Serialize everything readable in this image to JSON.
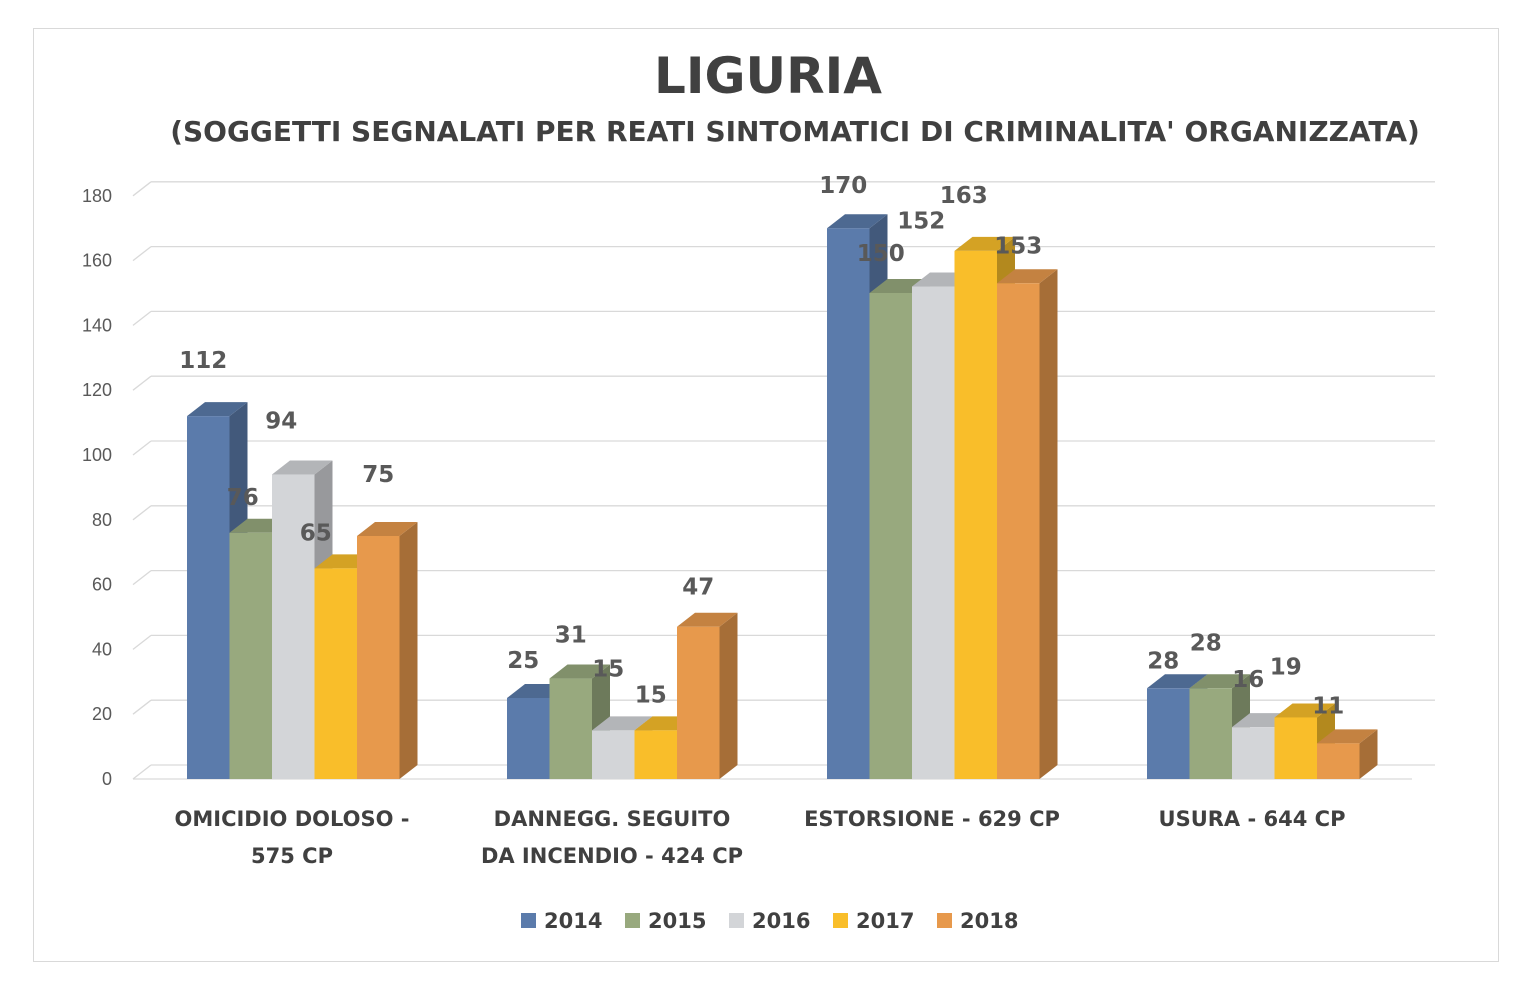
{
  "chart_data": {
    "type": "bar",
    "title": "LIGURIA",
    "subtitle": "(SOGGETTI SEGNALATI PER REATI SINTOMATICI DI CRIMINALITA' ORGANIZZATA)",
    "categories": [
      [
        "OMICIDIO DOLOSO -",
        "575 CP"
      ],
      [
        "DANNEGG. SEGUITO",
        "DA INCENDIO - 424 CP"
      ],
      [
        "ESTORSIONE - 629 CP"
      ],
      [
        "USURA - 644 CP"
      ]
    ],
    "series": [
      {
        "name": "2014",
        "color": "#5b7bab",
        "values": [
          112,
          25,
          170,
          28
        ]
      },
      {
        "name": "2015",
        "color": "#98a97e",
        "values": [
          76,
          31,
          150,
          28
        ]
      },
      {
        "name": "2016",
        "color": "#d3d5d8",
        "values": [
          94,
          15,
          152,
          16
        ]
      },
      {
        "name": "2017",
        "color": "#f9be2a",
        "values": [
          65,
          15,
          163,
          19
        ]
      },
      {
        "name": "2018",
        "color": "#e7994c",
        "values": [
          75,
          47,
          153,
          11
        ]
      }
    ],
    "ylim": [
      0,
      180
    ],
    "yticks": [
      0,
      20,
      40,
      60,
      80,
      100,
      120,
      140,
      160,
      180
    ],
    "grid": true,
    "legend": "bottom",
    "style": "3d-clustered-column"
  }
}
